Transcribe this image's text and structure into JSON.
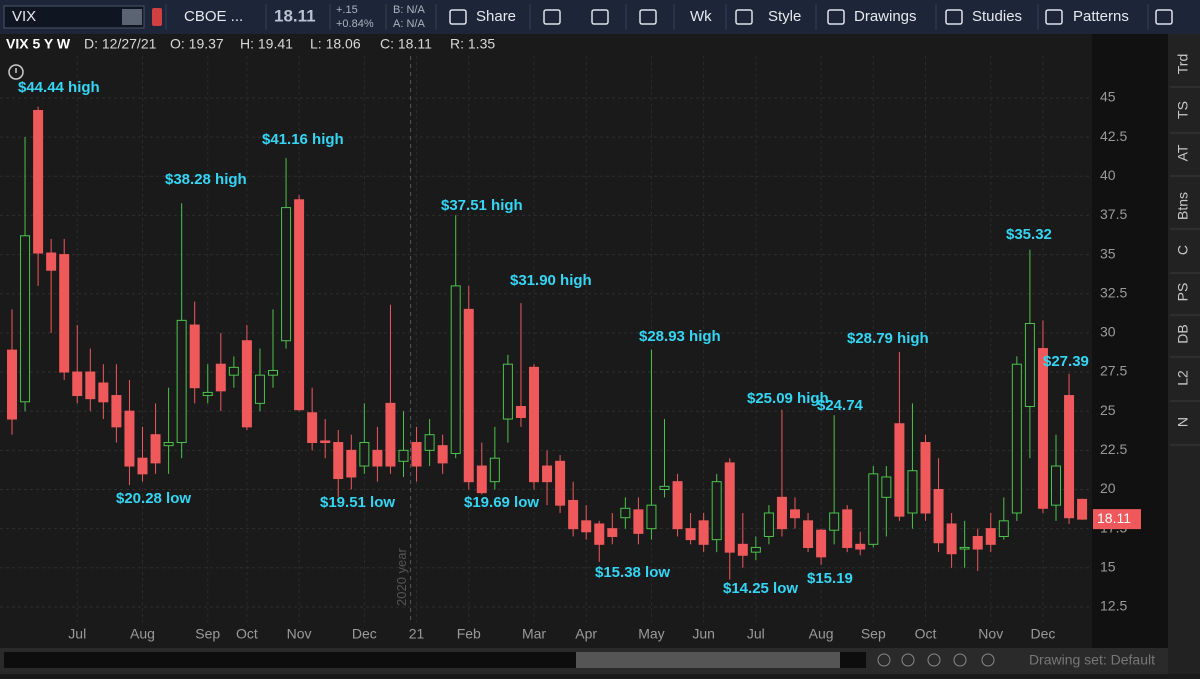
{
  "toolbar": {
    "symbol": "VIX",
    "exchange": "CBOE ...",
    "last": "18.11",
    "change": "+.15",
    "change_pct": "+0.84%",
    "bid": "B: N/A",
    "ask": "A: N/A",
    "buttons": [
      "Share",
      "Wk",
      "Style",
      "Drawings",
      "Studies",
      "Patterns"
    ]
  },
  "info_bar": {
    "symbol_period": "VIX 5 Y W",
    "date": "D: 12/27/21",
    "open": "O: 19.37",
    "high": "H: 19.41",
    "low": "L: 18.06",
    "close": "C: 18.11",
    "range": "R: 1.35"
  },
  "side_tabs": [
    "Trd",
    "TS",
    "AT",
    "Btns",
    "C",
    "PS",
    "DB",
    "L2",
    "N"
  ],
  "footer": {
    "drawing_set": "Drawing set: Default"
  },
  "chart_data": {
    "type": "candlestick",
    "categories": [
      null,
      null,
      null,
      null,
      null,
      "Jul",
      null,
      null,
      null,
      null,
      "Aug",
      null,
      null,
      null,
      null,
      "Sep",
      null,
      null,
      "Oct",
      null,
      null,
      null,
      "Nov",
      null,
      null,
      null,
      null,
      "Dec",
      null,
      null,
      null,
      "21",
      null,
      null,
      null,
      "Feb",
      null,
      null,
      null,
      null,
      "Mar",
      null,
      null,
      null,
      "Apr",
      null,
      null,
      null,
      null,
      "May",
      null,
      null,
      null,
      "Jun",
      null,
      null,
      null,
      "Jul",
      null,
      null,
      null,
      null,
      "Aug",
      null,
      null,
      null,
      "Sep",
      null,
      null,
      null,
      "Oct",
      null,
      null,
      null,
      null,
      "Nov",
      null,
      null,
      null,
      "Dec",
      null,
      null,
      null
    ],
    "open": [
      28.9,
      25.6,
      44.2,
      35.1,
      35,
      27.5,
      27.5,
      26.8,
      26,
      25,
      22,
      23.5,
      22.8,
      23,
      30.5,
      26,
      28,
      27.3,
      29.5,
      25.5,
      27.3,
      29.5,
      38.5,
      24.9,
      23.1,
      23,
      22.5,
      21.5,
      22.5,
      25.5,
      21.8,
      23,
      22.5,
      22.8,
      22.3,
      31.5,
      21.5,
      20.5,
      24.5,
      25.3,
      27.8,
      21.5,
      21.8,
      19.3,
      18,
      17.8,
      17.5,
      18.2,
      18.7,
      17.5,
      20,
      20.5,
      17.5,
      18,
      16.8,
      21.7,
      16.5,
      16,
      17,
      19.5,
      18.7,
      18,
      17.4,
      17.4,
      18.7,
      16.5,
      16.5,
      19.5,
      24.2,
      18.5,
      23,
      20,
      17.8,
      16.2,
      17,
      17.5,
      17,
      18.5,
      25.3,
      29,
      19,
      26,
      19.37
    ],
    "high": [
      31.5,
      42.5,
      44.44,
      36,
      36,
      30.5,
      29,
      28,
      28,
      27,
      24,
      25.5,
      26.5,
      38.28,
      32,
      28,
      30,
      28.5,
      30.5,
      29,
      31.5,
      41.16,
      38.8,
      26.5,
      24.5,
      23.8,
      23.5,
      25.5,
      24,
      31.8,
      25,
      24,
      24.5,
      23.5,
      37.51,
      33,
      23,
      24,
      28.6,
      31.9,
      28,
      22.5,
      22.2,
      20.5,
      19,
      18,
      18.5,
      19.5,
      19.5,
      28.93,
      24.5,
      21,
      18.5,
      18.5,
      21,
      22,
      18.5,
      17,
      19,
      25.09,
      19.5,
      18.5,
      17.5,
      24.74,
      19,
      17.3,
      21.5,
      21.5,
      28.79,
      25.5,
      23.5,
      22,
      18.5,
      18,
      17.5,
      18.5,
      19.5,
      28.5,
      35.32,
      30.8,
      23.5,
      27.39,
      19.41
    ],
    "low": [
      23.5,
      25,
      33,
      30,
      27,
      25.5,
      25,
      24.5,
      23,
      20.28,
      20.5,
      21,
      21,
      22,
      25.5,
      25.5,
      25,
      26.5,
      23.8,
      25,
      26.5,
      29,
      25,
      22.5,
      22,
      19.51,
      20,
      21,
      20.5,
      21,
      20.8,
      20.5,
      21.5,
      21,
      22,
      20,
      19.69,
      20,
      23,
      24,
      20,
      19,
      18.5,
      17,
      16.8,
      15.38,
      16.5,
      17.5,
      16.5,
      16.8,
      19.5,
      17,
      16.5,
      16,
      16,
      14.25,
      15,
      15.5,
      16.5,
      17,
      17.5,
      16,
      15.19,
      16.5,
      16,
      15.8,
      16.3,
      17,
      18,
      17.5,
      18,
      16,
      15,
      15,
      14.8,
      16,
      16.8,
      18,
      22,
      18.5,
      18,
      17.8,
      18.06
    ],
    "close": [
      24.5,
      36.2,
      35.1,
      34,
      27.5,
      26,
      25.8,
      25.6,
      24,
      21.5,
      21,
      21.7,
      23,
      30.8,
      26.5,
      26.2,
      26.3,
      27.8,
      24,
      27.3,
      27.6,
      38,
      25.1,
      23,
      23,
      20.7,
      20.8,
      23,
      21.5,
      21.5,
      22.5,
      21.5,
      23.5,
      21.7,
      33,
      20.5,
      19.8,
      22,
      28,
      24.6,
      20.5,
      20.5,
      19,
      17.5,
      17.3,
      16.5,
      17,
      18.8,
      17.2,
      19,
      20.2,
      17.5,
      16.8,
      16.5,
      20.5,
      16,
      15.8,
      16.3,
      18.5,
      17.5,
      18.2,
      16.3,
      15.7,
      18.5,
      16.3,
      16.2,
      21,
      20.8,
      18.3,
      21.2,
      18.5,
      16.6,
      15.9,
      16.3,
      16.2,
      16.5,
      18,
      28,
      30.6,
      18.8,
      21.5,
      18.2,
      18.11
    ],
    "up_color": "#4cc34c",
    "down_color": "#f0595b",
    "ylim": [
      11.54,
      47.68
    ],
    "yticks": [
      12.5,
      15,
      17.5,
      20,
      22.5,
      25,
      27.5,
      30,
      32.5,
      35,
      37.5,
      40,
      42.5,
      45
    ],
    "grid": true,
    "year_marker": "2020 year",
    "annotations": [
      "$44.44 high",
      "$38.28 high",
      "$41.16 high",
      "$37.51 high",
      "$31.90 high",
      "$28.93 high",
      "$25.09 high",
      "$24.74",
      "$28.79 high",
      "$35.32",
      "$27.39",
      "$20.28 low",
      "$19.51 low",
      "$19.69 low",
      "$15.38 low",
      "$14.25 low",
      "$15.19"
    ]
  }
}
